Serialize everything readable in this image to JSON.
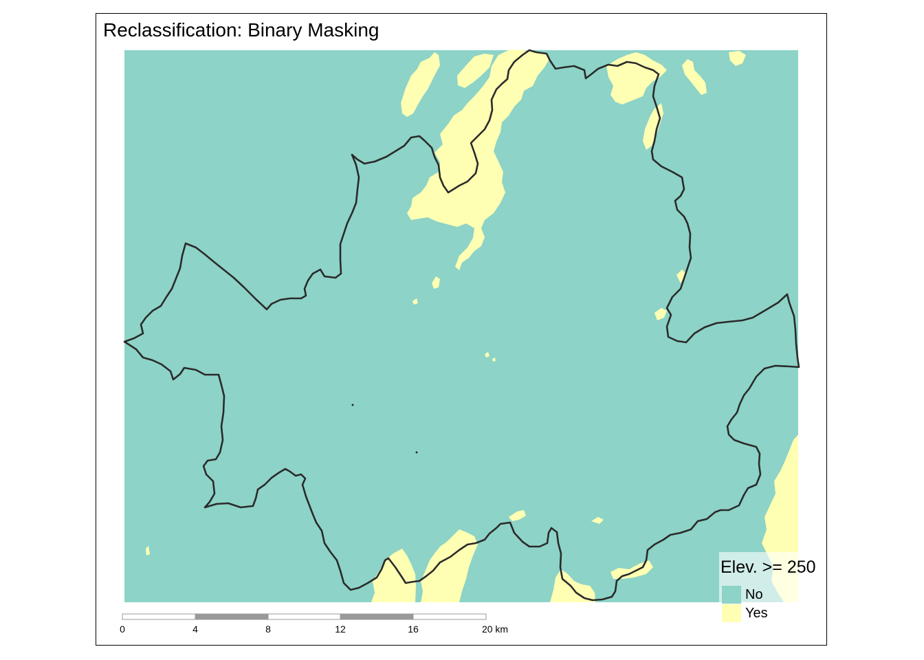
{
  "title": "Reclassification: Binary Masking",
  "legend": {
    "title": "Elev. >= 250",
    "items": [
      {
        "label": "No",
        "color": "#8DD3C7"
      },
      {
        "label": "Yes",
        "color": "#FFFFB3"
      }
    ]
  },
  "scalebar": {
    "ticks": [
      "0",
      "4",
      "8",
      "12",
      "16",
      "20 km"
    ],
    "segment_colors": [
      "#ffffff",
      "#999999"
    ]
  },
  "colors": {
    "boundary": "#2a2a2a",
    "frame": "#000000"
  }
}
